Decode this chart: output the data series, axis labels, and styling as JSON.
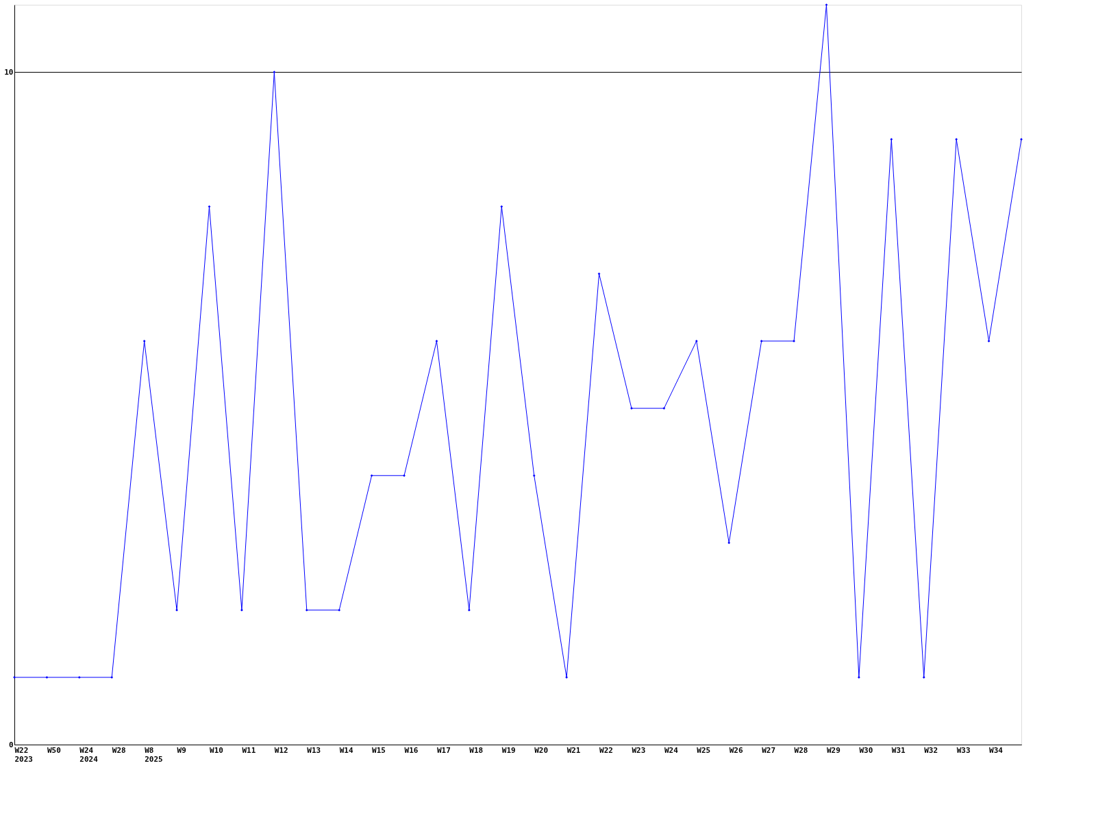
{
  "chart_data": {
    "type": "line",
    "categories": [
      "W22\n2023",
      "W50",
      "W24\n2024",
      "W28",
      "W8\n2025",
      "W9",
      "W10",
      "W11",
      "W12",
      "W13",
      "W14",
      "W15",
      "W16",
      "W17",
      "W18",
      "W19",
      "W20",
      "W21",
      "W22",
      "W23",
      "W24",
      "W25",
      "W26",
      "W27",
      "W28",
      "W29",
      "W30",
      "W31",
      "W32",
      "W33",
      "W34",
      null
    ],
    "series": [
      {
        "color": "#0000ff",
        "values": [
          1,
          1,
          1,
          1,
          6,
          2,
          8,
          2,
          10,
          2,
          2,
          4,
          4,
          6,
          2,
          8,
          4,
          1,
          7,
          5,
          5,
          6,
          3,
          6,
          6,
          11,
          1,
          9,
          1,
          9,
          6,
          9
        ]
      }
    ],
    "ylim": [
      0,
      11
    ],
    "yticks": [
      0,
      10
    ],
    "grid": "y",
    "marker": "diamond",
    "line_style": "solid"
  }
}
